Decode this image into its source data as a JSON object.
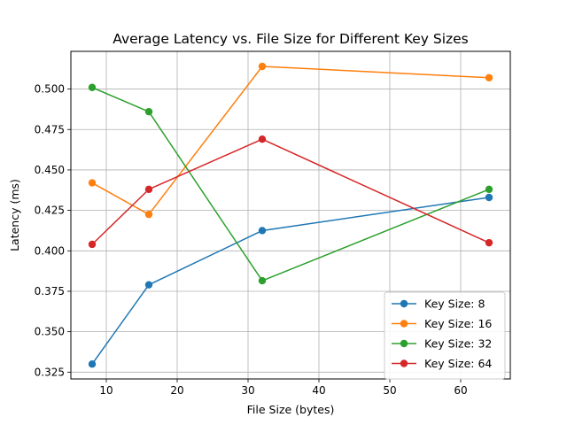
{
  "chart_data": {
    "type": "line",
    "title": "Average Latency vs. File Size for Different Key Sizes",
    "xlabel": "File Size (bytes)",
    "ylabel": "Latency (ms)",
    "x": [
      8,
      16,
      32,
      64
    ],
    "xlim": [
      5,
      67
    ],
    "ylim": [
      0.3208,
      0.5233
    ],
    "xticks": [
      10,
      20,
      30,
      40,
      50,
      60
    ],
    "yticks": [
      0.325,
      0.35,
      0.375,
      0.4,
      0.425,
      0.45,
      0.475,
      0.5
    ],
    "ytick_labels": [
      "0.325",
      "0.350",
      "0.375",
      "0.400",
      "0.425",
      "0.450",
      "0.475",
      "0.500"
    ],
    "grid": true,
    "legend_position": "lower-right",
    "series": [
      {
        "name": "Key Size: 8",
        "color": "#1f77b4",
        "values": [
          0.33,
          0.379,
          0.4125,
          0.433
        ]
      },
      {
        "name": "Key Size: 16",
        "color": "#ff7f0e",
        "values": [
          0.442,
          0.4225,
          0.514,
          0.507
        ]
      },
      {
        "name": "Key Size: 32",
        "color": "#2ca02c",
        "values": [
          0.501,
          0.486,
          0.3815,
          0.438
        ]
      },
      {
        "name": "Key Size: 64",
        "color": "#d62728",
        "values": [
          0.404,
          0.438,
          0.469,
          0.405
        ]
      }
    ]
  }
}
